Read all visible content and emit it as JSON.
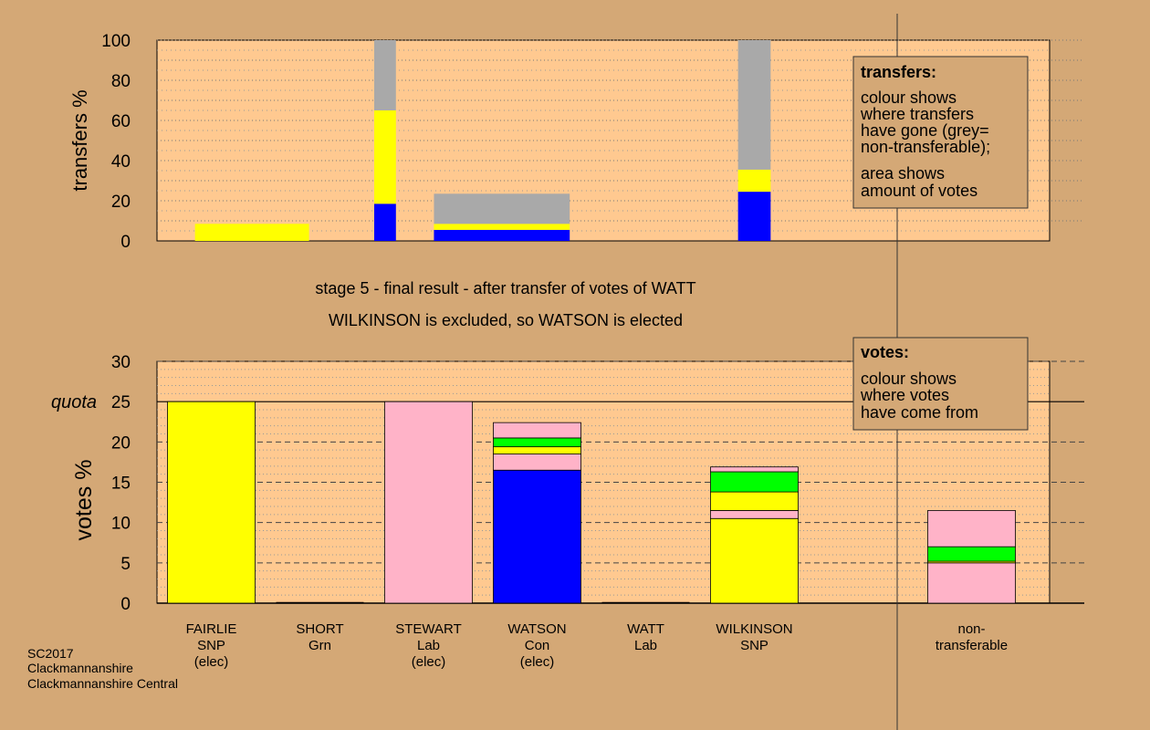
{
  "colors": {
    "background": "#d4a876",
    "plot_bg": "#ffc990",
    "grey": "#a9a9a9",
    "yellow": "#ffff00",
    "blue": "#0000ff",
    "pink": "#ffb3c8",
    "green": "#00ff00"
  },
  "stage_title": "stage 5 - final result - after transfer of votes of WATT",
  "stage_subtitle": "WILKINSON is excluded, so WATSON is elected",
  "footer": {
    "line1": "SC2017",
    "line2": "Clackmannanshire",
    "line3": "Clackmannanshire Central"
  },
  "legend_transfers": {
    "title": "transfers:",
    "lines": [
      "colour shows",
      "where transfers",
      "have gone (grey=",
      "non-transferable);",
      "area shows",
      "amount of votes"
    ]
  },
  "legend_votes": {
    "title": "votes:",
    "lines": [
      "colour shows",
      "where votes",
      "have come from"
    ]
  },
  "chart_data": [
    {
      "type": "bar",
      "name": "transfers",
      "ylabel": "transfers %",
      "ylim": [
        0,
        100
      ],
      "yticks": [
        0,
        20,
        40,
        60,
        80,
        100
      ],
      "grid": true,
      "bars": [
        {
          "x_from": 0.85,
          "x_to": 1.9,
          "segments": [
            {
              "color": "yellow",
              "value": 8.5
            }
          ]
        },
        {
          "x_from": 2.5,
          "x_to": 2.7,
          "segments": [
            {
              "color": "blue",
              "value": 18.5
            },
            {
              "color": "yellow",
              "value": 46.5
            },
            {
              "color": "grey",
              "value": 35
            }
          ]
        },
        {
          "x_from": 3.05,
          "x_to": 4.3,
          "segments": [
            {
              "color": "blue",
              "value": 5.5
            },
            {
              "color": "yellow",
              "value": 3
            },
            {
              "color": "grey",
              "value": 15
            }
          ]
        },
        {
          "x_from": 5.85,
          "x_to": 6.15,
          "segments": [
            {
              "color": "blue",
              "value": 24.5
            },
            {
              "color": "yellow",
              "value": 11
            },
            {
              "color": "grey",
              "value": 64.5
            }
          ]
        }
      ]
    },
    {
      "type": "bar",
      "name": "votes",
      "ylabel": "votes %",
      "ylim": [
        0,
        30
      ],
      "yticks": [
        0,
        5,
        10,
        15,
        20,
        25,
        30
      ],
      "quota": 25,
      "quota_label": "quota",
      "grid": true,
      "categories": [
        {
          "lines": [
            "FAIRLIE",
            "SNP",
            "(elec)"
          ],
          "segments": [
            {
              "color": "yellow",
              "value": 25
            }
          ]
        },
        {
          "lines": [
            "SHORT",
            "Grn"
          ],
          "segments": []
        },
        {
          "lines": [
            "STEWART",
            "Lab",
            "(elec)"
          ],
          "segments": [
            {
              "color": "pink",
              "value": 25
            }
          ]
        },
        {
          "lines": [
            "WATSON",
            "Con",
            "(elec)"
          ],
          "segments": [
            {
              "color": "blue",
              "value": 16.5
            },
            {
              "color": "pink",
              "value": 2
            },
            {
              "color": "yellow",
              "value": 0.9
            },
            {
              "color": "green",
              "value": 1.1
            },
            {
              "color": "pink",
              "value": 1.9
            }
          ]
        },
        {
          "lines": [
            "WATT",
            "Lab"
          ],
          "segments": []
        },
        {
          "lines": [
            "WILKINSON",
            "SNP"
          ],
          "segments": [
            {
              "color": "yellow",
              "value": 10.5
            },
            {
              "color": "pink",
              "value": 1
            },
            {
              "color": "yellow",
              "value": 2.3
            },
            {
              "color": "green",
              "value": 2.5
            },
            {
              "color": "pink",
              "value": 0.6
            }
          ]
        },
        {
          "lines": [
            "non-",
            "transferable"
          ],
          "segments": [
            {
              "color": "pink",
              "value": 5
            },
            {
              "color": "yellow",
              "value": 0.2
            },
            {
              "color": "green",
              "value": 1.8
            },
            {
              "color": "pink",
              "value": 4.5
            }
          ]
        }
      ]
    }
  ]
}
